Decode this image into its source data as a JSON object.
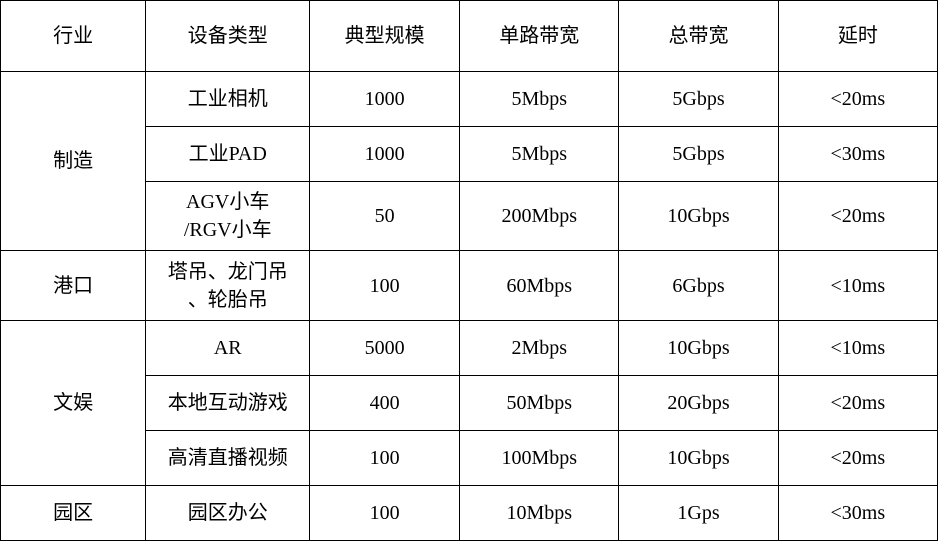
{
  "table": {
    "columns": [
      "行业",
      "设备类型",
      "典型规模",
      "单路带宽",
      "总带宽",
      "延时"
    ],
    "groups": [
      {
        "industry": "制造",
        "rows": [
          {
            "device": "工业相机",
            "scale": "1000",
            "single_bw": "5Mbps",
            "total_bw": "5Gbps",
            "latency": "<20ms"
          },
          {
            "device": "工业PAD",
            "scale": "1000",
            "single_bw": "5Mbps",
            "total_bw": "5Gbps",
            "latency": "<30ms"
          },
          {
            "device": "AGV小车\n/RGV小车",
            "scale": "50",
            "single_bw": "200Mbps",
            "total_bw": "10Gbps",
            "latency": "<20ms"
          }
        ]
      },
      {
        "industry": "港口",
        "rows": [
          {
            "device": "塔吊、龙门吊\n、轮胎吊",
            "scale": "100",
            "single_bw": "60Mbps",
            "total_bw": "6Gbps",
            "latency": "<10ms"
          }
        ]
      },
      {
        "industry": "文娱",
        "rows": [
          {
            "device": "AR",
            "scale": "5000",
            "single_bw": "2Mbps",
            "total_bw": "10Gbps",
            "latency": "<10ms"
          },
          {
            "device": "本地互动游戏",
            "scale": "400",
            "single_bw": "50Mbps",
            "total_bw": "20Gbps",
            "latency": "<20ms"
          },
          {
            "device": "高清直播视频",
            "scale": "100",
            "single_bw": "100Mbps",
            "total_bw": "10Gbps",
            "latency": "<20ms"
          }
        ]
      },
      {
        "industry": "园区",
        "rows": [
          {
            "device": "园区办公",
            "scale": "100",
            "single_bw": "10Mbps",
            "total_bw": "1Gps",
            "latency": "<30ms"
          }
        ]
      }
    ],
    "styling": {
      "border_color": "#000000",
      "border_width": 1.5,
      "background_color": "#ffffff",
      "text_color": "#000000",
      "font_size": 20,
      "font_family": "SimSun",
      "header_row_height": 62,
      "data_row_height_single": 54,
      "data_row_height_double": 68,
      "col_widths_pct": [
        15.5,
        17.5,
        16,
        17,
        17,
        17
      ],
      "text_align": "center",
      "vertical_align": "middle"
    }
  }
}
